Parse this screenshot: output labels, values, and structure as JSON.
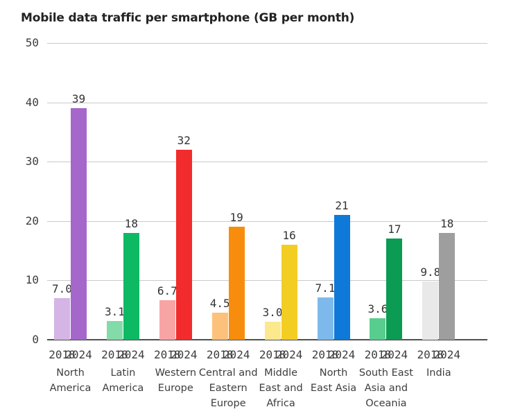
{
  "title": "Mobile data traffic per smartphone (GB per month)",
  "chart_data": {
    "type": "bar",
    "title": "Mobile data traffic per smartphone (GB per month)",
    "xlabel": "",
    "ylabel": "",
    "ylim": [
      0,
      50
    ],
    "yticks": [
      "0",
      "10",
      "20",
      "30",
      "40",
      "50"
    ],
    "grid": true,
    "legend_position": "none",
    "series_years": [
      "2018",
      "2024"
    ],
    "axis_color": "#4f4f4f",
    "gridline_color": "#c9c9c9",
    "groups": [
      {
        "region": "North America",
        "region_lines": [
          "North",
          "America"
        ],
        "bars": [
          {
            "year": "2018",
            "value": 7.0,
            "label": "7.0",
            "color": "#d5b4e6"
          },
          {
            "year": "2024",
            "value": 39,
            "label": "39",
            "color": "#a667cb"
          }
        ]
      },
      {
        "region": "Latin America",
        "region_lines": [
          "Latin",
          "America"
        ],
        "bars": [
          {
            "year": "2018",
            "value": 3.1,
            "label": "3.1",
            "color": "#82dba8"
          },
          {
            "year": "2024",
            "value": 18,
            "label": "18",
            "color": "#0eb964"
          }
        ]
      },
      {
        "region": "Western Europe",
        "region_lines": [
          "Western",
          "Europe"
        ],
        "bars": [
          {
            "year": "2018",
            "value": 6.7,
            "label": "6.7",
            "color": "#f9a4a4"
          },
          {
            "year": "2024",
            "value": 32,
            "label": "32",
            "color": "#f22c2c"
          }
        ]
      },
      {
        "region": "Central and Eastern Europe",
        "region_lines": [
          "Central and",
          "Eastern",
          "Europe"
        ],
        "bars": [
          {
            "year": "2018",
            "value": 4.5,
            "label": "4.5",
            "color": "#fcc17b"
          },
          {
            "year": "2024",
            "value": 19,
            "label": "19",
            "color": "#f88d0d"
          }
        ]
      },
      {
        "region": "Middle East and Africa",
        "region_lines": [
          "Middle",
          "East and",
          "Africa"
        ],
        "bars": [
          {
            "year": "2018",
            "value": 3.0,
            "label": "3.0",
            "color": "#fce88d"
          },
          {
            "year": "2024",
            "value": 16,
            "label": "16",
            "color": "#f4cd23"
          }
        ]
      },
      {
        "region": "North East Asia",
        "region_lines": [
          "North",
          "East Asia"
        ],
        "bars": [
          {
            "year": "2018",
            "value": 7.1,
            "label": "7.1",
            "color": "#7eb9ec"
          },
          {
            "year": "2024",
            "value": 21,
            "label": "21",
            "color": "#0e79d8"
          }
        ]
      },
      {
        "region": "South East Asia and Oceania",
        "region_lines": [
          "South East",
          "Asia and",
          "Oceania"
        ],
        "bars": [
          {
            "year": "2018",
            "value": 3.6,
            "label": "3.6",
            "color": "#57ce8d"
          },
          {
            "year": "2024",
            "value": 17,
            "label": "17",
            "color": "#0c9b53"
          }
        ]
      },
      {
        "region": "India",
        "region_lines": [
          "India"
        ],
        "bars": [
          {
            "year": "2018",
            "value": 9.8,
            "label": "9.8",
            "color": "#e9e9e9"
          },
          {
            "year": "2024",
            "value": 18,
            "label": "18",
            "color": "#9e9e9e"
          }
        ]
      }
    ]
  }
}
